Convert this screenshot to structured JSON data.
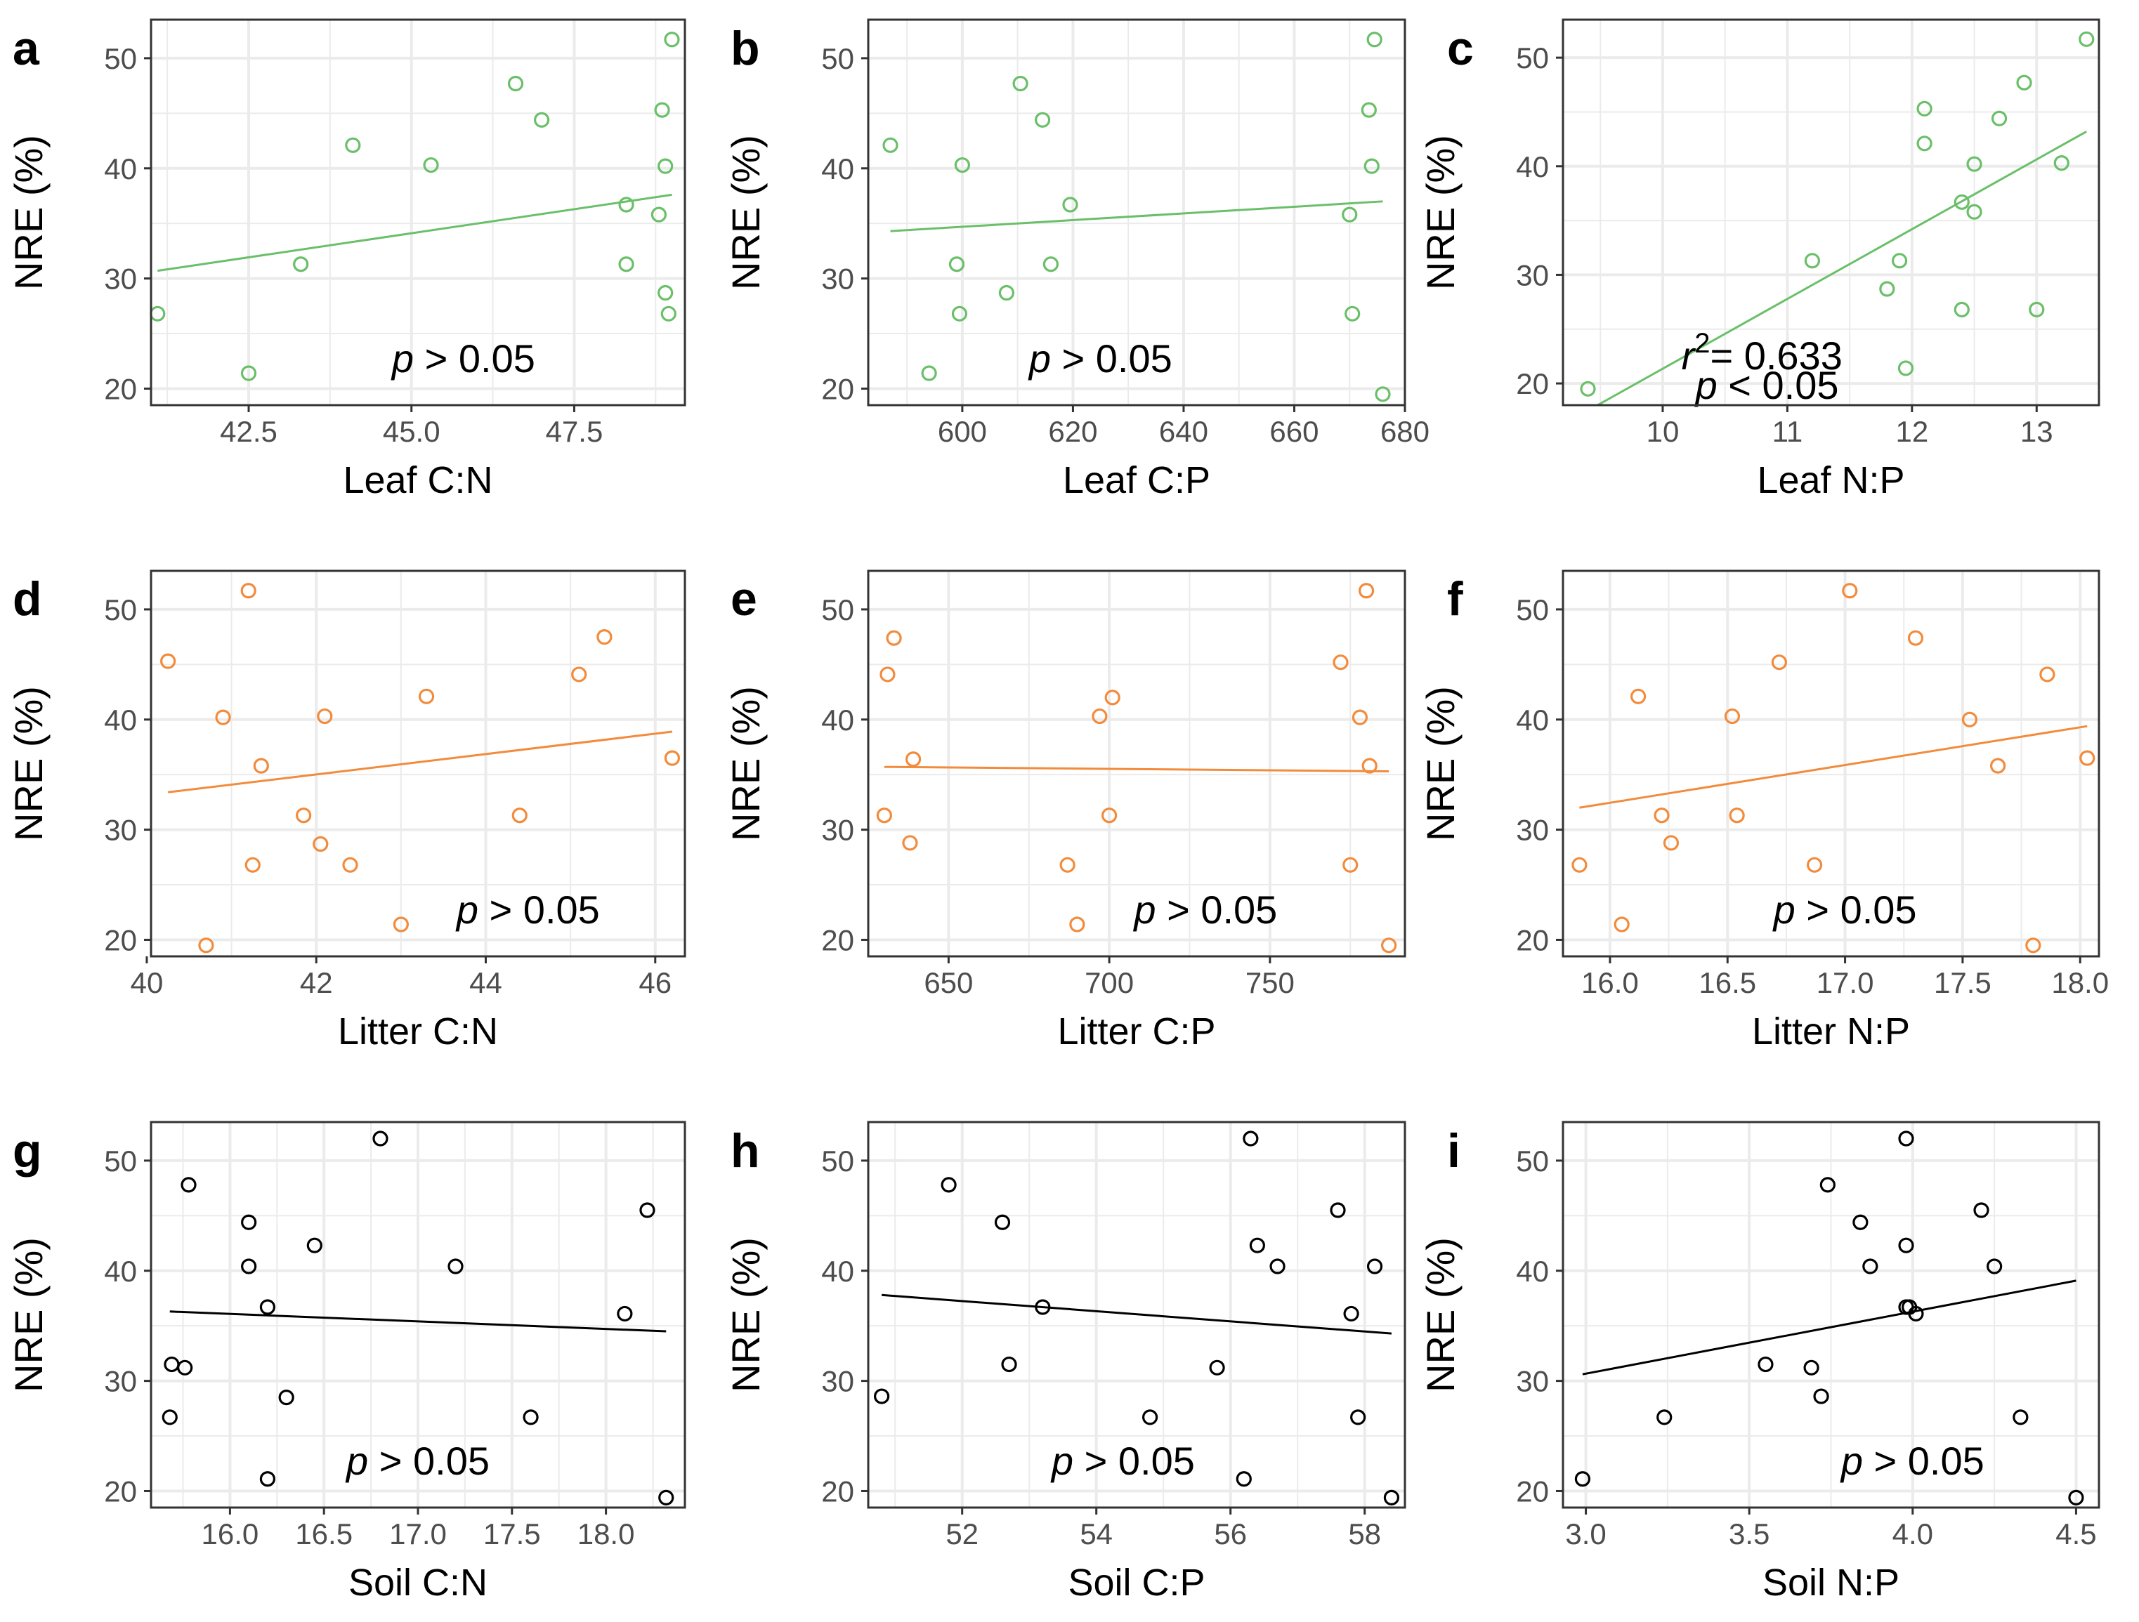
{
  "figure": {
    "background": "#ffffff",
    "grid_color": "#ebebeb",
    "border_color": "#333333"
  },
  "chart_data": [
    {
      "type": "scatter",
      "panel": "a",
      "color": "#6abf69",
      "xlabel": "Leaf C:N",
      "ylabel": "NRE (%)",
      "xlim": [
        41.0,
        49.2
      ],
      "ylim": [
        18.5,
        53.5
      ],
      "xticks": [
        42.5,
        45.0,
        47.5
      ],
      "xtick_labels": [
        "42.5",
        "45.0",
        "47.5"
      ],
      "yticks": [
        20,
        30,
        40,
        50
      ],
      "ytick_labels": [
        "20",
        "30",
        "40",
        "50"
      ],
      "x": [
        41.1,
        42.5,
        43.3,
        44.1,
        45.3,
        46.6,
        47.0,
        48.3,
        48.3,
        48.8,
        48.85,
        48.9,
        48.9,
        48.95,
        49.0
      ],
      "y": [
        26.8,
        21.4,
        31.3,
        42.1,
        40.3,
        47.7,
        44.4,
        36.7,
        31.3,
        35.8,
        45.3,
        40.2,
        28.7,
        26.8,
        51.7
      ],
      "trend": {
        "x": [
          41.1,
          49.0
        ],
        "y": [
          30.7,
          37.6
        ]
      },
      "annotation": {
        "text": "p > 0.05",
        "x": 45.8,
        "y": 21.5
      }
    },
    {
      "type": "scatter",
      "panel": "b",
      "color": "#6abf69",
      "xlabel": "Leaf C:P",
      "ylabel": "NRE (%)",
      "xlim": [
        583,
        680
      ],
      "ylim": [
        18.5,
        53.5
      ],
      "xticks": [
        600,
        620,
        640,
        660,
        680
      ],
      "xtick_labels": [
        "600",
        "620",
        "640",
        "660",
        "680"
      ],
      "yticks": [
        20,
        30,
        40,
        50
      ],
      "ytick_labels": [
        "20",
        "30",
        "40",
        "50"
      ],
      "x": [
        587,
        594,
        599,
        599.5,
        600,
        608,
        610.5,
        614.5,
        616,
        619.5,
        670,
        670.5,
        673.5,
        674,
        674.5,
        676
      ],
      "y": [
        42.1,
        21.4,
        31.3,
        26.8,
        40.3,
        28.7,
        47.7,
        44.4,
        31.3,
        36.7,
        35.8,
        26.8,
        45.3,
        40.2,
        51.7,
        19.5
      ],
      "trend": {
        "x": [
          587,
          676
        ],
        "y": [
          34.3,
          37.0
        ]
      },
      "annotation": {
        "text": "p > 0.05",
        "x": 625,
        "y": 21.5
      }
    },
    {
      "type": "scatter",
      "panel": "c",
      "color": "#6abf69",
      "xlabel": "Leaf N:P",
      "ylabel": "NRE (%)",
      "xlim": [
        9.2,
        13.5
      ],
      "ylim": [
        18.0,
        53.5
      ],
      "xticks": [
        10,
        11,
        12,
        13
      ],
      "xtick_labels": [
        "10",
        "11",
        "12",
        "13"
      ],
      "yticks": [
        20,
        30,
        40,
        50
      ],
      "ytick_labels": [
        "20",
        "30",
        "40",
        "50"
      ],
      "x": [
        9.4,
        11.2,
        11.8,
        11.9,
        11.95,
        12.1,
        12.1,
        12.4,
        12.4,
        12.5,
        12.5,
        12.7,
        12.9,
        13.0,
        13.2,
        13.4
      ],
      "y": [
        19.5,
        31.3,
        28.7,
        31.3,
        21.4,
        45.3,
        42.1,
        36.7,
        26.8,
        40.2,
        35.8,
        44.4,
        47.7,
        26.8,
        40.3,
        51.7
      ],
      "trend": {
        "x": [
          9.4,
          13.4
        ],
        "y": [
          17.5,
          43.2
        ]
      },
      "annotation": {
        "text": "r² = 0.633",
        "lines": [
          "r",
          "2",
          "= 0.633"
        ],
        "p_text": "p < 0.05",
        "x": 10.15,
        "y": 21.3
      }
    },
    {
      "type": "scatter",
      "panel": "d",
      "color": "#f28b3c",
      "xlabel": "Litter C:N",
      "ylabel": "NRE (%)",
      "xlim": [
        40.05,
        46.35
      ],
      "ylim": [
        18.5,
        53.5
      ],
      "xticks": [
        40,
        42,
        44,
        46
      ],
      "xtick_labels": [
        "40",
        "42",
        "44",
        "46"
      ],
      "yticks": [
        20,
        30,
        40,
        50
      ],
      "ytick_labels": [
        "20",
        "30",
        "40",
        "50"
      ],
      "x": [
        40.25,
        40.7,
        40.9,
        41.2,
        41.25,
        41.35,
        41.85,
        42.05,
        42.1,
        42.4,
        43.0,
        43.3,
        44.4,
        45.1,
        45.4,
        46.2
      ],
      "y": [
        45.3,
        19.5,
        40.2,
        51.7,
        26.8,
        35.8,
        31.3,
        28.7,
        40.3,
        26.8,
        21.4,
        42.1,
        31.3,
        44.1,
        47.5,
        36.5
      ],
      "trend": {
        "x": [
          40.25,
          46.2
        ],
        "y": [
          33.4,
          38.9
        ]
      },
      "annotation": {
        "text": "p > 0.05",
        "x": 44.5,
        "y": 21.5
      }
    },
    {
      "type": "scatter",
      "panel": "e",
      "color": "#f28b3c",
      "xlabel": "Litter C:P",
      "ylabel": "NRE (%)",
      "xlim": [
        625,
        792
      ],
      "ylim": [
        18.5,
        53.5
      ],
      "xticks": [
        650,
        700,
        750
      ],
      "xtick_labels": [
        "650",
        "700",
        "750"
      ],
      "yticks": [
        20,
        30,
        40,
        50
      ],
      "ytick_labels": [
        "20",
        "30",
        "40",
        "50"
      ],
      "x": [
        630,
        631,
        633,
        638,
        639,
        687,
        690,
        697,
        700,
        701,
        772,
        775,
        778,
        780,
        781,
        787
      ],
      "y": [
        31.3,
        44.1,
        47.4,
        28.8,
        36.4,
        26.8,
        21.4,
        40.3,
        31.3,
        42.0,
        45.2,
        26.8,
        40.2,
        51.7,
        35.8,
        19.5
      ],
      "trend": {
        "x": [
          630,
          787
        ],
        "y": [
          35.7,
          35.3
        ]
      },
      "annotation": {
        "text": "p > 0.05",
        "x": 730,
        "y": 21.5
      }
    },
    {
      "type": "scatter",
      "panel": "f",
      "color": "#f28b3c",
      "xlabel": "Litter N:P",
      "ylabel": "NRE (%)",
      "xlim": [
        15.8,
        18.08
      ],
      "ylim": [
        18.5,
        53.5
      ],
      "xticks": [
        16.0,
        16.5,
        17.0,
        17.5,
        18.0
      ],
      "xtick_labels": [
        "16.0",
        "16.5",
        "17.0",
        "17.5",
        "18.0"
      ],
      "yticks": [
        20,
        30,
        40,
        50
      ],
      "ytick_labels": [
        "20",
        "30",
        "40",
        "50"
      ],
      "x": [
        15.87,
        16.05,
        16.12,
        16.22,
        16.26,
        16.52,
        16.54,
        16.72,
        16.87,
        17.02,
        17.3,
        17.53,
        17.65,
        17.8,
        17.86,
        18.03
      ],
      "y": [
        26.8,
        21.4,
        42.1,
        31.3,
        28.8,
        40.3,
        31.3,
        45.2,
        26.8,
        51.7,
        47.4,
        40.0,
        35.8,
        19.5,
        44.1,
        36.5
      ],
      "trend": {
        "x": [
          15.87,
          18.03
        ],
        "y": [
          32.0,
          39.4
        ]
      },
      "annotation": {
        "text": "p > 0.05",
        "x": 17.0,
        "y": 21.5
      }
    },
    {
      "type": "scatter",
      "panel": "g",
      "color": "#000000",
      "xlabel": "Soil C:N",
      "ylabel": "NRE (%)",
      "xlim": [
        15.58,
        18.42
      ],
      "ylim": [
        18.5,
        53.5
      ],
      "xticks": [
        16.0,
        16.5,
        17.0,
        17.5,
        18.0
      ],
      "xtick_labels": [
        "16.0",
        "16.5",
        "17.0",
        "17.5",
        "18.0"
      ],
      "yticks": [
        20,
        30,
        40,
        50
      ],
      "ytick_labels": [
        "20",
        "30",
        "40",
        "50"
      ],
      "x": [
        15.68,
        15.69,
        15.76,
        15.78,
        16.1,
        16.1,
        16.2,
        16.2,
        16.3,
        16.45,
        16.8,
        17.2,
        17.6,
        18.1,
        18.22,
        18.32
      ],
      "y": [
        26.7,
        31.5,
        31.2,
        47.8,
        44.4,
        40.4,
        36.7,
        21.1,
        28.5,
        42.3,
        52.0,
        40.4,
        26.7,
        36.1,
        45.5,
        19.4
      ],
      "trend": {
        "x": [
          15.68,
          18.32
        ],
        "y": [
          36.3,
          34.5
        ]
      },
      "annotation": {
        "text": "p > 0.05",
        "x": 17.0,
        "y": 21.5
      }
    },
    {
      "type": "scatter",
      "panel": "h",
      "color": "#000000",
      "xlabel": "Soil C:P",
      "ylabel": "NRE (%)",
      "xlim": [
        50.6,
        58.6
      ],
      "ylim": [
        18.5,
        53.5
      ],
      "xticks": [
        52,
        54,
        56,
        58
      ],
      "xtick_labels": [
        "52",
        "54",
        "56",
        "58"
      ],
      "yticks": [
        20,
        30,
        40,
        50
      ],
      "ytick_labels": [
        "20",
        "30",
        "40",
        "50"
      ],
      "x": [
        50.8,
        51.8,
        52.6,
        52.7,
        53.2,
        54.8,
        55.8,
        56.2,
        56.3,
        56.4,
        56.7,
        57.6,
        57.8,
        57.9,
        58.15,
        58.4
      ],
      "y": [
        28.6,
        47.8,
        44.4,
        31.5,
        36.7,
        26.7,
        31.2,
        21.1,
        52.0,
        42.3,
        40.4,
        45.5,
        36.1,
        26.7,
        40.4,
        19.4
      ],
      "trend": {
        "x": [
          50.8,
          58.4
        ],
        "y": [
          37.8,
          34.3
        ]
      },
      "annotation": {
        "text": "p > 0.05",
        "x": 54.4,
        "y": 21.5
      }
    },
    {
      "type": "scatter",
      "panel": "i",
      "color": "#000000",
      "xlabel": "Soil N:P",
      "ylabel": "NRE (%)",
      "xlim": [
        2.93,
        4.57
      ],
      "ylim": [
        18.5,
        53.5
      ],
      "xticks": [
        3.0,
        3.5,
        4.0,
        4.5
      ],
      "xtick_labels": [
        "3.0",
        "3.5",
        "4.0",
        "4.5"
      ],
      "yticks": [
        20,
        30,
        40,
        50
      ],
      "ytick_labels": [
        "20",
        "30",
        "40",
        "50"
      ],
      "x": [
        2.99,
        3.24,
        3.55,
        3.69,
        3.72,
        3.74,
        3.84,
        3.87,
        3.98,
        3.98,
        3.98,
        3.99,
        4.01,
        4.21,
        4.25,
        4.33,
        4.5
      ],
      "y": [
        21.1,
        26.7,
        31.5,
        31.2,
        28.6,
        47.8,
        44.4,
        40.4,
        52.0,
        42.3,
        36.7,
        36.7,
        36.1,
        45.5,
        40.4,
        26.7,
        19.4
      ],
      "trend": {
        "x": [
          2.99,
          4.5
        ],
        "y": [
          30.6,
          39.1
        ]
      },
      "annotation": {
        "text": "p > 0.05",
        "x": 4.0,
        "y": 21.5
      }
    }
  ]
}
